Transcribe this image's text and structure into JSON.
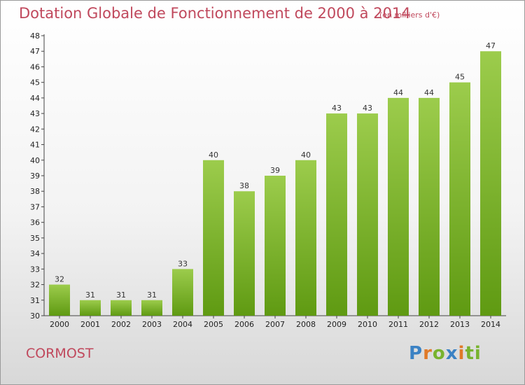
{
  "header": {
    "title": "Dotation Globale de Fonctionnement de 2000 à 2014",
    "subtitle": "(en milliers d'€)"
  },
  "footer": {
    "commune": "CORMOST",
    "logo": [
      "P",
      "r",
      "o",
      "x",
      "i",
      "ti"
    ]
  },
  "colors": {
    "bar_top": "#9ccc4c",
    "bar_bottom": "#5f9a12",
    "accent_text": "#c0485c"
  },
  "chart_data": {
    "type": "bar",
    "title": "Dotation Globale de Fonctionnement de 2000 à 2014",
    "subtitle": "(en milliers d'€)",
    "xlabel": "",
    "ylabel": "",
    "categories": [
      "2000",
      "2001",
      "2002",
      "2003",
      "2004",
      "2005",
      "2006",
      "2007",
      "2008",
      "2009",
      "2010",
      "2011",
      "2012",
      "2013",
      "2014"
    ],
    "values": [
      32,
      31,
      31,
      31,
      33,
      40,
      38,
      39,
      40,
      43,
      43,
      44,
      44,
      45,
      47
    ],
    "ylim": [
      30,
      48
    ],
    "yticks": [
      30,
      31,
      32,
      33,
      34,
      35,
      36,
      37,
      38,
      39,
      40,
      41,
      42,
      43,
      44,
      45,
      46,
      47,
      48
    ],
    "grid": false,
    "legend": "none"
  }
}
